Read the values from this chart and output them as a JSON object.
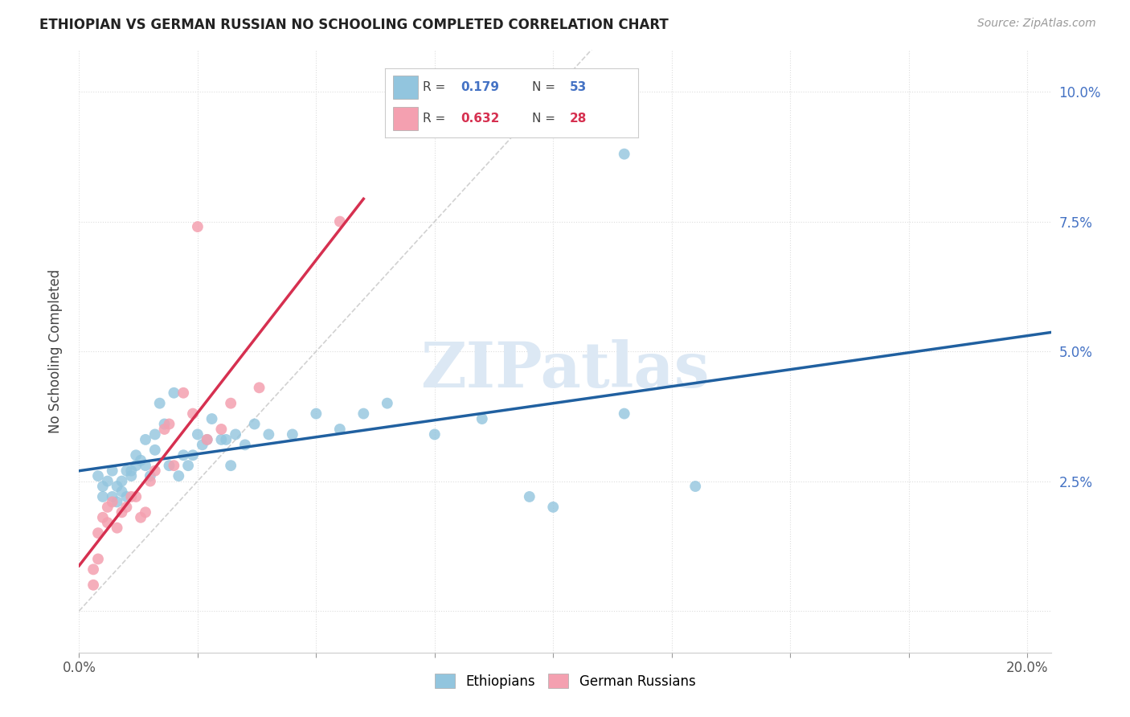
{
  "title": "ETHIOPIAN VS GERMAN RUSSIAN NO SCHOOLING COMPLETED CORRELATION CHART",
  "source": "Source: ZipAtlas.com",
  "ylabel": "No Schooling Completed",
  "xlim": [
    0.0,
    0.205
  ],
  "ylim": [
    -0.008,
    0.108
  ],
  "yticks": [
    0.0,
    0.025,
    0.05,
    0.075,
    0.1
  ],
  "ytick_labels_right": [
    "",
    "2.5%",
    "5.0%",
    "7.5%",
    "10.0%"
  ],
  "xtick_positions": [
    0.0,
    0.025,
    0.05,
    0.075,
    0.1,
    0.125,
    0.15,
    0.175,
    0.2
  ],
  "xtick_labels": [
    "0.0%",
    "",
    "",
    "",
    "",
    "",
    "",
    "",
    "20.0%"
  ],
  "blue_color": "#92c5de",
  "pink_color": "#f4a0b0",
  "blue_line_color": "#2060a0",
  "pink_line_color": "#d63050",
  "diag_color": "#cccccc",
  "watermark": "ZIPatlas",
  "ethiopians_x": [
    0.004,
    0.005,
    0.005,
    0.006,
    0.007,
    0.007,
    0.008,
    0.008,
    0.009,
    0.009,
    0.01,
    0.01,
    0.011,
    0.011,
    0.012,
    0.012,
    0.013,
    0.014,
    0.014,
    0.015,
    0.016,
    0.016,
    0.017,
    0.018,
    0.019,
    0.02,
    0.021,
    0.022,
    0.023,
    0.024,
    0.025,
    0.026,
    0.027,
    0.028,
    0.03,
    0.031,
    0.032,
    0.033,
    0.035,
    0.037,
    0.04,
    0.045,
    0.05,
    0.055,
    0.06,
    0.065,
    0.075,
    0.085,
    0.095,
    0.1,
    0.115,
    0.13,
    0.115
  ],
  "ethiopians_y": [
    0.026,
    0.024,
    0.022,
    0.025,
    0.022,
    0.027,
    0.021,
    0.024,
    0.023,
    0.025,
    0.022,
    0.027,
    0.027,
    0.026,
    0.03,
    0.028,
    0.029,
    0.033,
    0.028,
    0.026,
    0.034,
    0.031,
    0.04,
    0.036,
    0.028,
    0.042,
    0.026,
    0.03,
    0.028,
    0.03,
    0.034,
    0.032,
    0.033,
    0.037,
    0.033,
    0.033,
    0.028,
    0.034,
    0.032,
    0.036,
    0.034,
    0.034,
    0.038,
    0.035,
    0.038,
    0.04,
    0.034,
    0.037,
    0.022,
    0.02,
    0.038,
    0.024,
    0.088
  ],
  "german_russians_x": [
    0.003,
    0.003,
    0.004,
    0.004,
    0.005,
    0.006,
    0.006,
    0.007,
    0.008,
    0.009,
    0.01,
    0.011,
    0.012,
    0.013,
    0.014,
    0.015,
    0.016,
    0.018,
    0.019,
    0.02,
    0.022,
    0.024,
    0.025,
    0.027,
    0.03,
    0.032,
    0.038,
    0.055
  ],
  "german_russians_y": [
    0.008,
    0.005,
    0.01,
    0.015,
    0.018,
    0.017,
    0.02,
    0.021,
    0.016,
    0.019,
    0.02,
    0.022,
    0.022,
    0.018,
    0.019,
    0.025,
    0.027,
    0.035,
    0.036,
    0.028,
    0.042,
    0.038,
    0.074,
    0.033,
    0.035,
    0.04,
    0.043,
    0.075
  ],
  "legend_r1": "0.179",
  "legend_n1": "53",
  "legend_r2": "0.632",
  "legend_n2": "28"
}
